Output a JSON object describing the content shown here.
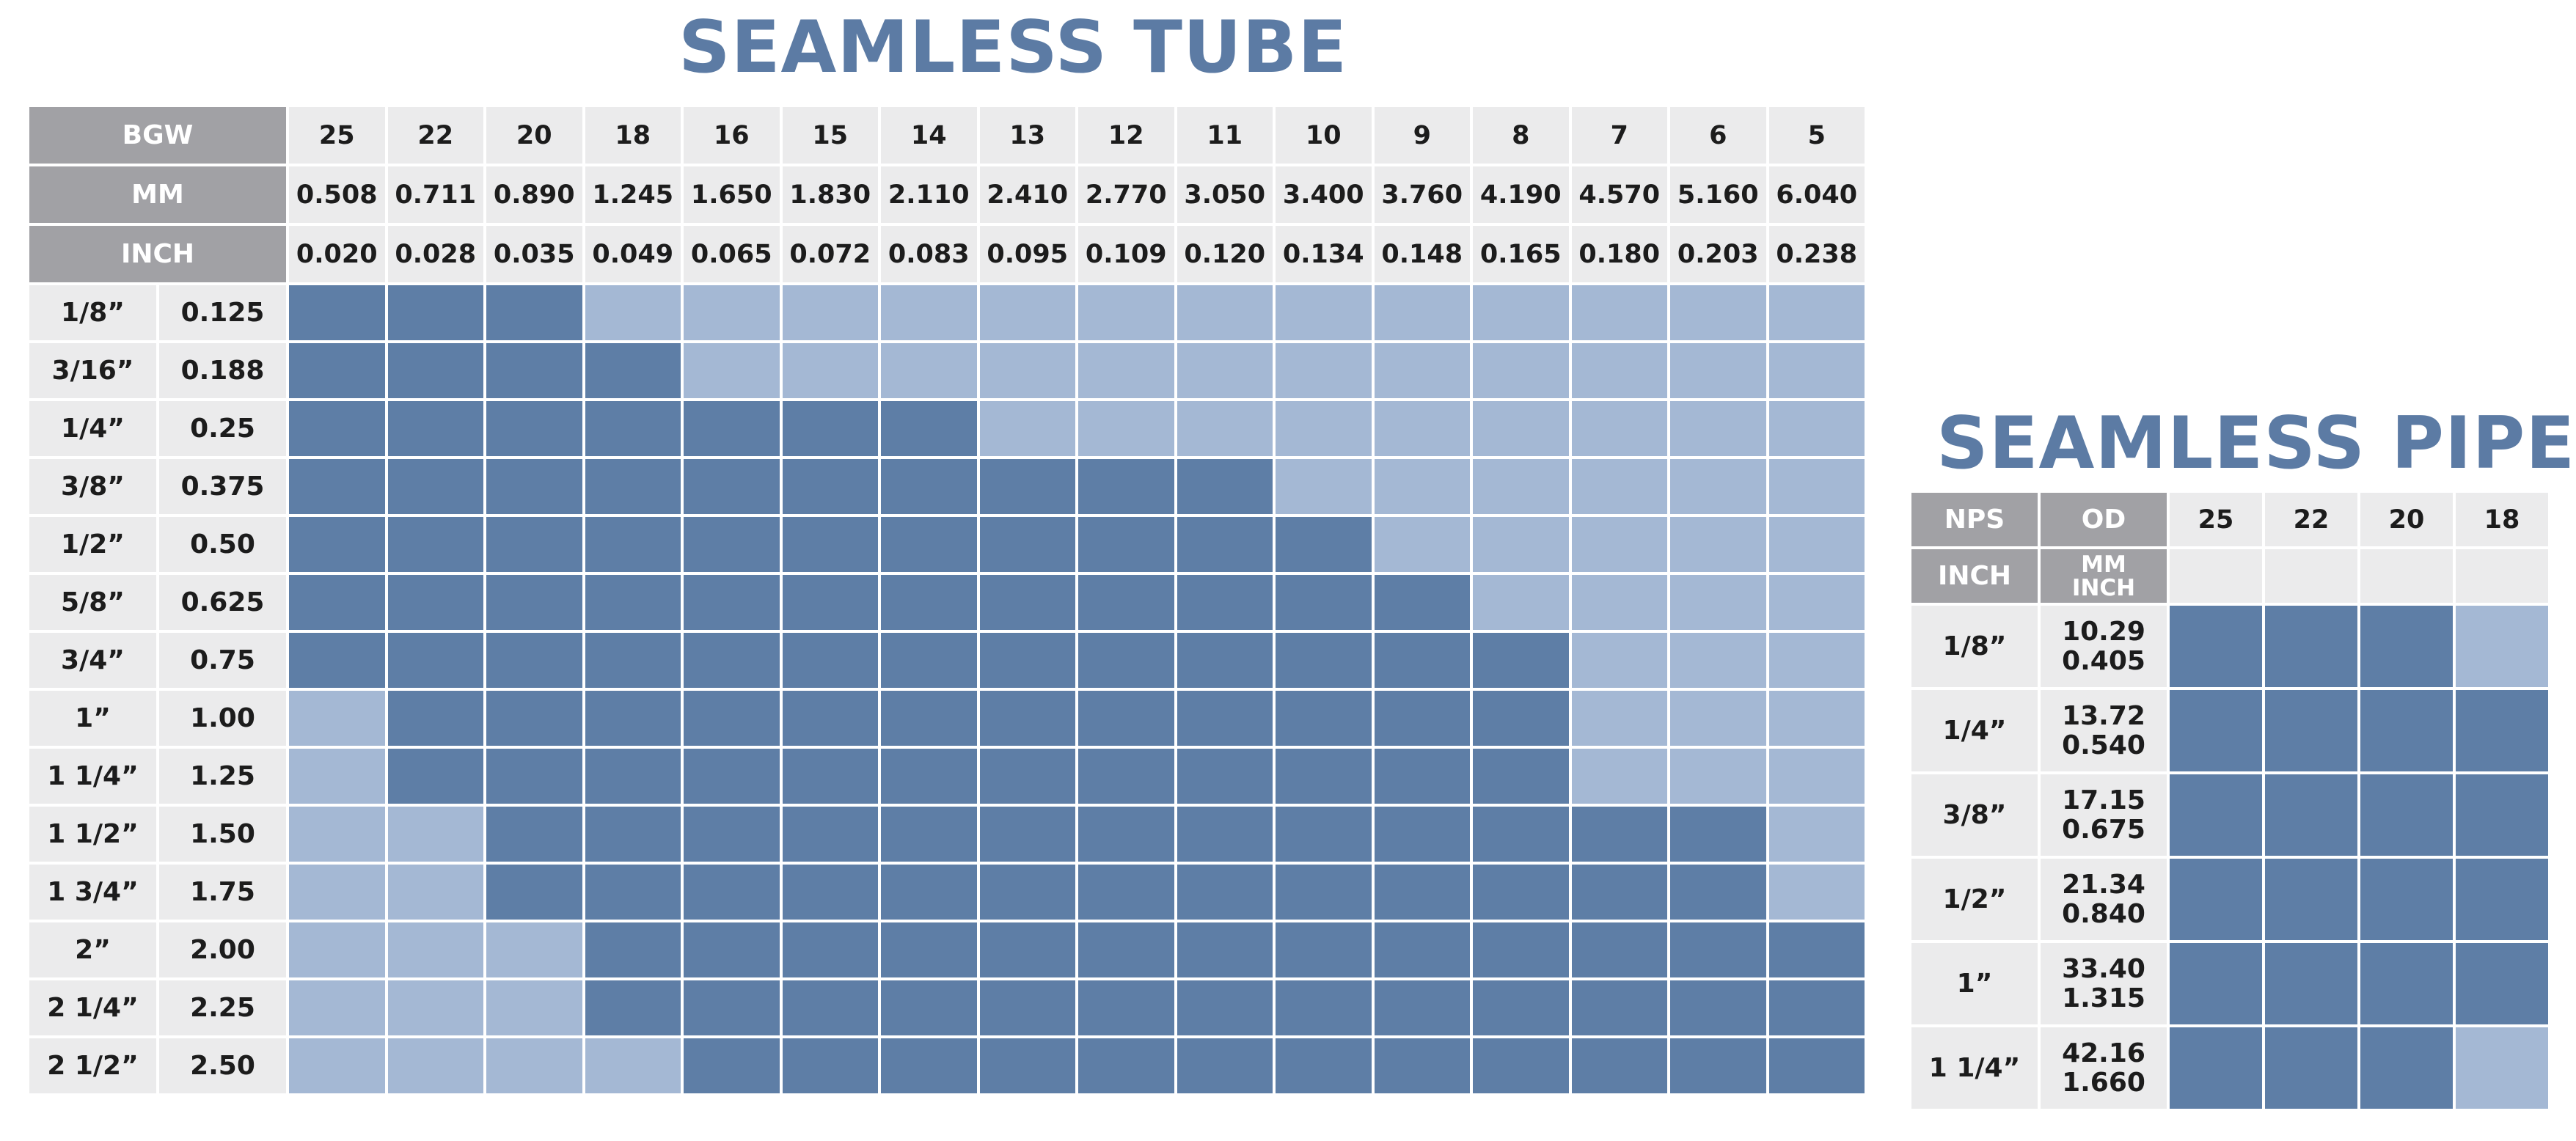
{
  "tube": {
    "title": "SEAMLESS TUBE",
    "header_labels": [
      "BGW",
      "MM",
      "INCH"
    ],
    "columns": [
      {
        "bgw": "25",
        "mm": "0.508",
        "inch": "0.020"
      },
      {
        "bgw": "22",
        "mm": "0.711",
        "inch": "0.028"
      },
      {
        "bgw": "20",
        "mm": "0.890",
        "inch": "0.035"
      },
      {
        "bgw": "18",
        "mm": "1.245",
        "inch": "0.049"
      },
      {
        "bgw": "16",
        "mm": "1.650",
        "inch": "0.065"
      },
      {
        "bgw": "15",
        "mm": "1.830",
        "inch": "0.072"
      },
      {
        "bgw": "14",
        "mm": "2.110",
        "inch": "0.083"
      },
      {
        "bgw": "13",
        "mm": "2.410",
        "inch": "0.095"
      },
      {
        "bgw": "12",
        "mm": "2.770",
        "inch": "0.109"
      },
      {
        "bgw": "11",
        "mm": "3.050",
        "inch": "0.120"
      },
      {
        "bgw": "10",
        "mm": "3.400",
        "inch": "0.134"
      },
      {
        "bgw": "9",
        "mm": "3.760",
        "inch": "0.148"
      },
      {
        "bgw": "8",
        "mm": "4.190",
        "inch": "0.165"
      },
      {
        "bgw": "7",
        "mm": "4.570",
        "inch": "0.180"
      },
      {
        "bgw": "6",
        "mm": "5.160",
        "inch": "0.203"
      },
      {
        "bgw": "5",
        "mm": "6.040",
        "inch": "0.238"
      }
    ],
    "rows": [
      {
        "size": "1/8”",
        "od": "0.125",
        "available": [
          1,
          1,
          1,
          0,
          0,
          0,
          0,
          0,
          0,
          0,
          0,
          0,
          0,
          0,
          0,
          0
        ]
      },
      {
        "size": "3/16”",
        "od": "0.188",
        "available": [
          1,
          1,
          1,
          1,
          0,
          0,
          0,
          0,
          0,
          0,
          0,
          0,
          0,
          0,
          0,
          0
        ]
      },
      {
        "size": "1/4”",
        "od": "0.25",
        "available": [
          1,
          1,
          1,
          1,
          1,
          1,
          1,
          0,
          0,
          0,
          0,
          0,
          0,
          0,
          0,
          0
        ]
      },
      {
        "size": "3/8”",
        "od": "0.375",
        "available": [
          1,
          1,
          1,
          1,
          1,
          1,
          1,
          1,
          1,
          1,
          0,
          0,
          0,
          0,
          0,
          0
        ]
      },
      {
        "size": "1/2”",
        "od": "0.50",
        "available": [
          1,
          1,
          1,
          1,
          1,
          1,
          1,
          1,
          1,
          1,
          1,
          0,
          0,
          0,
          0,
          0
        ]
      },
      {
        "size": "5/8”",
        "od": "0.625",
        "available": [
          1,
          1,
          1,
          1,
          1,
          1,
          1,
          1,
          1,
          1,
          1,
          1,
          0,
          0,
          0,
          0
        ]
      },
      {
        "size": "3/4”",
        "od": "0.75",
        "available": [
          1,
          1,
          1,
          1,
          1,
          1,
          1,
          1,
          1,
          1,
          1,
          1,
          1,
          0,
          0,
          0
        ]
      },
      {
        "size": "1”",
        "od": "1.00",
        "available": [
          0,
          1,
          1,
          1,
          1,
          1,
          1,
          1,
          1,
          1,
          1,
          1,
          1,
          0,
          0,
          0
        ]
      },
      {
        "size": "1 1/4”",
        "od": "1.25",
        "available": [
          0,
          1,
          1,
          1,
          1,
          1,
          1,
          1,
          1,
          1,
          1,
          1,
          1,
          0,
          0,
          0
        ]
      },
      {
        "size": "1 1/2”",
        "od": "1.50",
        "available": [
          0,
          0,
          1,
          1,
          1,
          1,
          1,
          1,
          1,
          1,
          1,
          1,
          1,
          1,
          1,
          0
        ]
      },
      {
        "size": "1 3/4”",
        "od": "1.75",
        "available": [
          0,
          0,
          1,
          1,
          1,
          1,
          1,
          1,
          1,
          1,
          1,
          1,
          1,
          1,
          1,
          0
        ]
      },
      {
        "size": "2”",
        "od": "2.00",
        "available": [
          0,
          0,
          0,
          1,
          1,
          1,
          1,
          1,
          1,
          1,
          1,
          1,
          1,
          1,
          1,
          1
        ]
      },
      {
        "size": "2 1/4”",
        "od": "2.25",
        "available": [
          0,
          0,
          0,
          1,
          1,
          1,
          1,
          1,
          1,
          1,
          1,
          1,
          1,
          1,
          1,
          1
        ]
      },
      {
        "size": "2 1/2”",
        "od": "2.50",
        "available": [
          0,
          0,
          0,
          0,
          1,
          1,
          1,
          1,
          1,
          1,
          1,
          1,
          1,
          1,
          1,
          1
        ]
      }
    ]
  },
  "pipe": {
    "title": "SEAMLESS PIPE",
    "header_top": [
      "NPS",
      "OD"
    ],
    "header_bottom": [
      "INCH",
      "MM",
      "INCH"
    ],
    "columns": [
      "25",
      "22",
      "20",
      "18"
    ],
    "rows": [
      {
        "nps": "1/4”",
        "mm": "13.72",
        "inch": "0.540",
        "available": [
          1,
          1,
          1,
          1
        ]
      },
      {
        "nps": "3/8”",
        "mm": "17.15",
        "inch": "0.675",
        "available": [
          1,
          1,
          1,
          1
        ]
      },
      {
        "nps": "1/2”",
        "mm": "21.34",
        "inch": "0.840",
        "available": [
          1,
          1,
          1,
          1
        ]
      },
      {
        "nps": "1”",
        "mm": "33.40",
        "inch": "1.315",
        "available": [
          1,
          1,
          1,
          1
        ]
      },
      {
        "nps": "1 1/4”",
        "mm": "42.16",
        "inch": "1.660",
        "available": [
          1,
          1,
          1,
          0
        ]
      }
    ],
    "first_row": {
      "nps": "1/8”",
      "mm": "10.29",
      "inch": "0.405",
      "available": [
        1,
        1,
        1,
        0
      ]
    }
  },
  "colors": {
    "available": "#5e7ea6",
    "unavailable": "#a4b8d4",
    "header": "#a1a1a5",
    "label": "#ebebec",
    "title": "#5c7ba4"
  }
}
